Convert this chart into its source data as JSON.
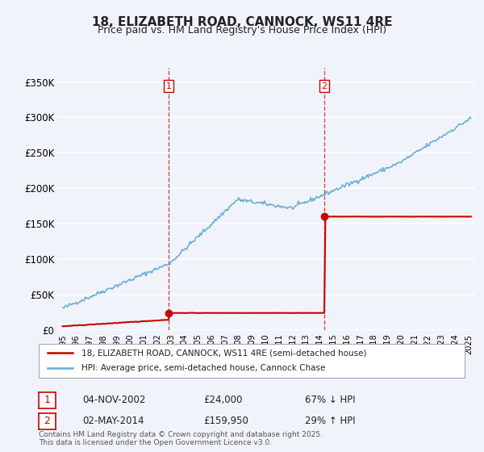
{
  "title": "18, ELIZABETH ROAD, CANNOCK, WS11 4RE",
  "subtitle": "Price paid vs. HM Land Registry's House Price Index (HPI)",
  "legend_line1": "18, ELIZABETH ROAD, CANNOCK, WS11 4RE (semi-detached house)",
  "legend_line2": "HPI: Average price, semi-detached house, Cannock Chase",
  "footnote": "Contains HM Land Registry data © Crown copyright and database right 2025.\nThis data is licensed under the Open Government Licence v3.0.",
  "sale1_date": "04-NOV-2002",
  "sale1_price": 24000,
  "sale1_pct": "67% ↓ HPI",
  "sale2_date": "02-MAY-2014",
  "sale2_price": 159950,
  "sale2_pct": "29% ↑ HPI",
  "hpi_color": "#6baed6",
  "price_color": "#cc0000",
  "vline_color": "#cc0000",
  "marker_color": "#cc0000",
  "ylim": [
    0,
    370000
  ],
  "yticks": [
    0,
    50000,
    100000,
    150000,
    200000,
    250000,
    300000,
    350000
  ],
  "ytick_labels": [
    "£0",
    "£50K",
    "£100K",
    "£150K",
    "£200K",
    "£250K",
    "£300K",
    "£350K"
  ],
  "background_color": "#f0f4fa",
  "plot_bg_color": "#f0f4fa",
  "grid_color": "#ffffff"
}
